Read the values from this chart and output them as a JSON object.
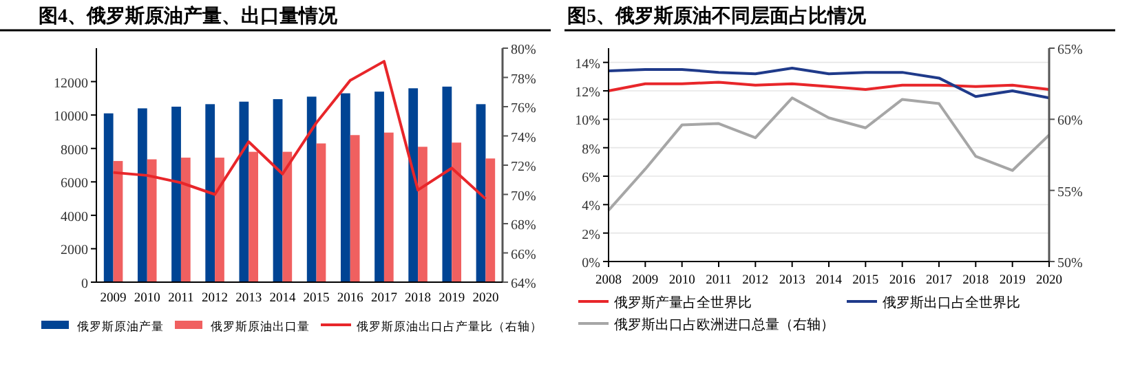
{
  "chart_data": [
    {
      "type": "bar",
      "title": "图4、俄罗斯原油产量、出口量情况",
      "categories": [
        "2009",
        "2010",
        "2011",
        "2012",
        "2013",
        "2014",
        "2015",
        "2016",
        "2017",
        "2018",
        "2019",
        "2020"
      ],
      "series": [
        {
          "name": "俄罗斯原油产量",
          "color": "#004494",
          "values": [
            10100,
            10400,
            10500,
            10650,
            10800,
            10950,
            11100,
            11300,
            11400,
            11600,
            11700,
            10650
          ]
        },
        {
          "name": "俄罗斯原油出口量",
          "color": "#f06060",
          "values": [
            7250,
            7350,
            7450,
            7450,
            7800,
            7800,
            8300,
            8800,
            8950,
            8100,
            8350,
            7400
          ]
        },
        {
          "name": "俄罗斯原油出口占产量比（右轴）",
          "type": "line",
          "axis": "y2",
          "color": "#e8262a",
          "values": [
            71.5,
            71.3,
            70.8,
            70.0,
            73.6,
            71.4,
            74.9,
            77.8,
            79.1,
            70.3,
            71.8,
            69.7
          ]
        }
      ],
      "ylim": [
        0,
        14000
      ],
      "yticks": [
        0,
        2000,
        4000,
        6000,
        8000,
        10000,
        12000
      ],
      "y2lim": [
        64,
        80
      ],
      "y2ticks": [
        {
          "value": 64,
          "label": "64%"
        },
        {
          "value": 66,
          "label": "66%"
        },
        {
          "value": 68,
          "label": "68%"
        },
        {
          "value": 70,
          "label": "70%"
        },
        {
          "value": 72,
          "label": "72%"
        },
        {
          "value": 74,
          "label": "74%"
        },
        {
          "value": 76,
          "label": "76%"
        },
        {
          "value": 78,
          "label": "78%"
        },
        {
          "value": 80,
          "label": "80%"
        }
      ],
      "legend": "bottom",
      "grid": false
    },
    {
      "type": "line",
      "title": "图5、俄罗斯原油不同层面占比情况",
      "x": [
        2008,
        2009,
        2010,
        2011,
        2012,
        2013,
        2014,
        2015,
        2016,
        2017,
        2018,
        2019,
        2020
      ],
      "series": [
        {
          "name": "俄罗斯产量占全世界比",
          "color": "#e8262a",
          "values": [
            12.0,
            12.5,
            12.5,
            12.6,
            12.4,
            12.5,
            12.3,
            12.1,
            12.4,
            12.4,
            12.3,
            12.4,
            12.1
          ]
        },
        {
          "name": "俄罗斯出口占全世界比",
          "color": "#1f3a8a",
          "values": [
            13.4,
            13.5,
            13.5,
            13.3,
            13.2,
            13.6,
            13.2,
            13.3,
            13.3,
            12.9,
            11.6,
            12.0,
            11.5
          ]
        },
        {
          "name": "俄罗斯出口占欧洲进口总量（右轴）",
          "axis": "y2",
          "color": "#a6a6a6",
          "values": [
            53.6,
            56.5,
            59.6,
            59.7,
            58.7,
            61.5,
            60.1,
            59.4,
            61.4,
            61.1,
            57.4,
            56.4,
            58.9
          ]
        }
      ],
      "xlim": [
        2008,
        2020
      ],
      "xticks": [
        2008,
        2009,
        2010,
        2011,
        2012,
        2013,
        2014,
        2015,
        2016,
        2017,
        2018,
        2019,
        2020
      ],
      "ylim": [
        0,
        15
      ],
      "yticks": [
        {
          "value": 0,
          "label": "0%"
        },
        {
          "value": 2,
          "label": "2%"
        },
        {
          "value": 4,
          "label": "4%"
        },
        {
          "value": 6,
          "label": "6%"
        },
        {
          "value": 8,
          "label": "8%"
        },
        {
          "value": 10,
          "label": "10%"
        },
        {
          "value": 12,
          "label": "12%"
        },
        {
          "value": 14,
          "label": "14%"
        }
      ],
      "y2lim": [
        50,
        65
      ],
      "y2ticks": [
        {
          "value": 50,
          "label": "50%"
        },
        {
          "value": 55,
          "label": "55%"
        },
        {
          "value": 60,
          "label": "60%"
        },
        {
          "value": 65,
          "label": "65%"
        }
      ],
      "legend": "bottom",
      "grid": "y"
    }
  ]
}
